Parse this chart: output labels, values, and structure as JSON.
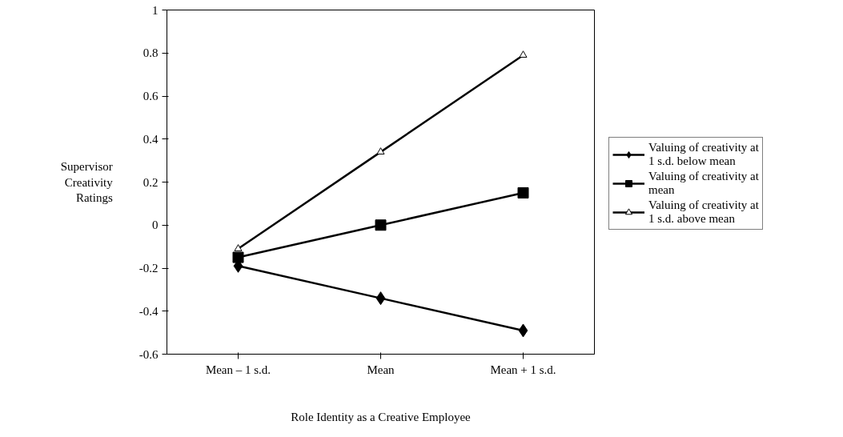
{
  "chart_data": {
    "type": "line",
    "xlabel": "Role Identity as a Creative Employee",
    "ylabel": "Supervisor Creativity Ratings",
    "categories": [
      "Mean – 1 s.d.",
      "Mean",
      "Mean + 1 s.d."
    ],
    "series": [
      {
        "name": "Valuing of creativity at 1 s.d. below mean",
        "color": "#000000",
        "marker": "diamond",
        "values": [
          -0.19,
          -0.34,
          -0.49
        ]
      },
      {
        "name": "Valuing of creativity at mean",
        "color": "#000000",
        "marker": "square",
        "values": [
          -0.15,
          0.0,
          0.15
        ]
      },
      {
        "name": "Valuing of creativity at 1 s.d. above mean",
        "color": "#000000",
        "marker": "triangle",
        "values": [
          -0.11,
          0.34,
          0.79
        ]
      }
    ],
    "ylim": [
      -0.6,
      1
    ],
    "yticks": [
      -0.6,
      -0.4,
      -0.2,
      0,
      0.2,
      0.4,
      0.6,
      0.8,
      1
    ],
    "grid": false,
    "legend": "right",
    "line_style": "solid"
  }
}
